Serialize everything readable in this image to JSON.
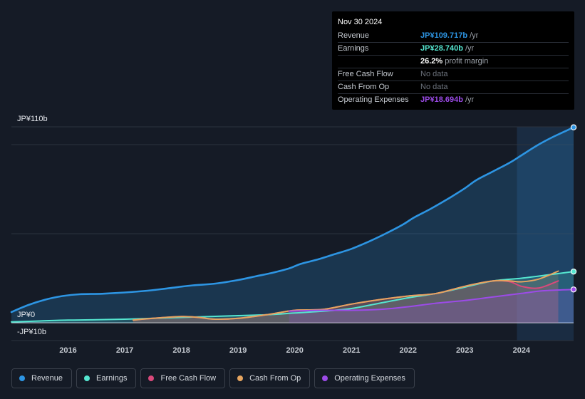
{
  "chart_data": {
    "type": "line",
    "title": "",
    "xlabel": "",
    "ylabel": "",
    "ylim": [
      -10,
      110
    ],
    "y_axis_labels": [
      "JP¥110b",
      "JP¥0",
      "-JP¥10b"
    ],
    "xlim": [
      2015.0,
      2024.92
    ],
    "x_ticks": [
      2016,
      2017,
      2018,
      2019,
      2020,
      2021,
      2022,
      2023,
      2024
    ],
    "forecast_start": 2023.92,
    "series": [
      {
        "name": "Revenue",
        "key": "revenue",
        "color": "#2d95e3",
        "x": [
          2015.0,
          2015.3,
          2015.6,
          2015.9,
          2016.2,
          2016.6,
          2017.0,
          2017.4,
          2017.8,
          2018.2,
          2018.6,
          2019.0,
          2019.3,
          2019.6,
          2019.9,
          2020.1,
          2020.4,
          2020.7,
          2021.0,
          2021.3,
          2021.6,
          2021.9,
          2022.1,
          2022.4,
          2022.7,
          2023.0,
          2023.2,
          2023.5,
          2023.8,
          2024.0,
          2024.3,
          2024.6,
          2024.92
        ],
        "values": [
          6,
          10,
          13,
          15,
          16,
          16.3,
          17,
          18,
          19.5,
          21,
          22,
          24,
          26,
          28,
          30.5,
          33,
          35.5,
          38.5,
          41.5,
          45.5,
          50,
          55,
          59,
          64,
          69.5,
          75.5,
          80,
          85,
          90,
          94,
          100,
          105,
          109.717
        ]
      },
      {
        "name": "Earnings",
        "key": "earnings",
        "color": "#55e6d0",
        "x": [
          2015.0,
          2015.5,
          2016.0,
          2016.5,
          2017.0,
          2017.5,
          2018.0,
          2018.5,
          2019.0,
          2019.5,
          2020.0,
          2020.5,
          2021.0,
          2021.5,
          2022.0,
          2022.5,
          2023.0,
          2023.5,
          2024.0,
          2024.5,
          2024.92
        ],
        "values": [
          0.5,
          1,
          1.5,
          1.7,
          2,
          2.5,
          3,
          3.5,
          4,
          4.5,
          5.5,
          6.5,
          8,
          11,
          14,
          16.5,
          20,
          23.5,
          25,
          27,
          28.74
        ]
      },
      {
        "name": "Free Cash Flow",
        "key": "fcf",
        "color": "#d9497b",
        "x": [
          2017.15,
          2017.5,
          2018.0,
          2018.3,
          2018.6,
          2019.0,
          2019.5,
          2020.0,
          2020.5,
          2021.0,
          2021.5,
          2022.0,
          2022.5,
          2023.0,
          2023.5,
          2023.8,
          2024.0,
          2024.3,
          2024.65
        ],
        "values": [
          1.5,
          2.5,
          3.5,
          3,
          2,
          2.5,
          4.5,
          7,
          7.5,
          10.5,
          13,
          15,
          16.5,
          20.5,
          23.5,
          23,
          20.5,
          19.5,
          23.5
        ]
      },
      {
        "name": "Cash From Op",
        "key": "cfo",
        "color": "#e6a560",
        "x": [
          2017.15,
          2017.5,
          2018.0,
          2018.3,
          2018.6,
          2019.0,
          2019.5,
          2020.0,
          2020.5,
          2021.0,
          2021.5,
          2022.0,
          2022.5,
          2023.0,
          2023.5,
          2023.8,
          2024.0,
          2024.3,
          2024.65
        ],
        "values": [
          1.5,
          2.5,
          3.5,
          3,
          2,
          2.5,
          4.5,
          7,
          7.5,
          10.5,
          13,
          15,
          16.5,
          20.5,
          23.5,
          23.5,
          23,
          24.5,
          29
        ]
      },
      {
        "name": "Operating Expenses",
        "key": "opex",
        "color": "#9c4be8",
        "x": [
          2019.9,
          2020.5,
          2021.0,
          2021.5,
          2022.0,
          2022.5,
          2023.0,
          2023.5,
          2024.0,
          2024.4,
          2024.92
        ],
        "values": [
          6.5,
          7,
          7,
          7.5,
          9,
          11,
          12.5,
          14.5,
          16.5,
          18,
          18.694
        ]
      }
    ]
  },
  "tooltip": {
    "date": "Nov 30 2024",
    "rows": [
      {
        "label": "Revenue",
        "value": "JP¥109.717b",
        "suffix": "/yr",
        "color": "#2d95e3"
      },
      {
        "label": "Earnings",
        "value": "JP¥28.740b",
        "suffix": "/yr",
        "color": "#55e6d0"
      },
      {
        "label": "",
        "value": "26.2%",
        "suffix": "profit margin",
        "color": "#ffffff"
      },
      {
        "label": "Free Cash Flow",
        "value": "No data",
        "suffix": "",
        "color": "#6c727c"
      },
      {
        "label": "Cash From Op",
        "value": "No data",
        "suffix": "",
        "color": "#6c727c"
      },
      {
        "label": "Operating Expenses",
        "value": "JP¥18.694b",
        "suffix": "/yr",
        "color": "#9c4be8"
      }
    ]
  },
  "legend": [
    {
      "label": "Revenue",
      "color": "#2d95e3"
    },
    {
      "label": "Earnings",
      "color": "#55e6d0"
    },
    {
      "label": "Free Cash Flow",
      "color": "#d9497b"
    },
    {
      "label": "Cash From Op",
      "color": "#e6a560"
    },
    {
      "label": "Operating Expenses",
      "color": "#9c4be8"
    }
  ]
}
